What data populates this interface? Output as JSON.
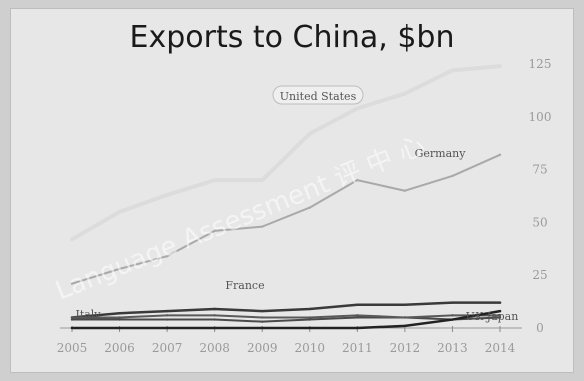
{
  "chart_data": {
    "type": "line",
    "title": "Exports to China, $bn",
    "x": [
      "2005",
      "2006",
      "2007",
      "2008",
      "2009",
      "2010",
      "2011",
      "2012",
      "2013",
      "2014"
    ],
    "ylim": [
      0,
      125
    ],
    "yticks": [
      0,
      25,
      50,
      75,
      100,
      125
    ],
    "ytick_labels": [
      "0",
      "25",
      "50",
      "75",
      "100",
      "125"
    ],
    "grid": false,
    "series": [
      {
        "name": "United States",
        "color": "#dcdcdc",
        "values": [
          42,
          55,
          63,
          70,
          70,
          92,
          104,
          111,
          122,
          124
        ]
      },
      {
        "name": "Germany",
        "color": "#a9a9a9",
        "values": [
          21,
          28,
          34,
          46,
          48,
          57,
          70,
          65,
          72,
          82
        ]
      },
      {
        "name": "France",
        "color": "#3a3a3a",
        "values": [
          5,
          7,
          8,
          9,
          8,
          9,
          11,
          11,
          12,
          12
        ]
      },
      {
        "name": "UK",
        "color": "#4a4a4a",
        "values": [
          4,
          4,
          4,
          4,
          3,
          4,
          5,
          5,
          4,
          5
        ]
      },
      {
        "name": "Italy",
        "color": "#5a5a5a",
        "values": [
          5,
          5,
          6,
          6,
          5,
          5,
          6,
          5,
          6,
          6
        ]
      },
      {
        "name": "UK Japan",
        "color": "#222222",
        "values": [
          0,
          0,
          0,
          0,
          0,
          0,
          0,
          1,
          4,
          8
        ]
      }
    ]
  },
  "watermark": "Language Assessment 评 中 心"
}
